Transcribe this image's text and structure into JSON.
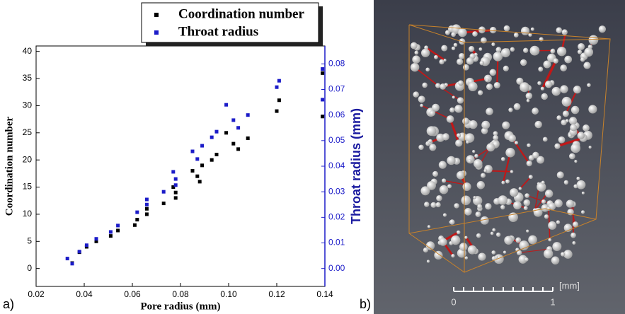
{
  "chart_data": {
    "type": "scatter",
    "xlabel": "Pore radius (mm)",
    "ylabel": "Coordination number",
    "y2label": "Throat radius (mm)",
    "xlim": [
      0.02,
      0.14
    ],
    "xticks": [
      0.02,
      0.04,
      0.06,
      0.08,
      {
        "value": 0.1,
        "label": "0.10"
      },
      0.12,
      0.14
    ],
    "ylim": [
      -3.3,
      41
    ],
    "yticks": [
      0,
      5,
      10,
      15,
      20,
      25,
      30,
      35,
      40
    ],
    "y2lim": [
      -0.007,
      0.087
    ],
    "y2ticks": [
      {
        "value": 0,
        "label": "0.00"
      },
      0.01,
      0.02,
      0.03,
      0.04,
      0.05,
      0.06,
      0.07,
      0.08
    ],
    "legend": "top",
    "series": [
      {
        "name": "Coordination number",
        "color": "#000000",
        "x": [
          0.035,
          0.038,
          0.041,
          0.045,
          0.051,
          0.054,
          0.061,
          0.062,
          0.066,
          0.066,
          0.073,
          0.077,
          0.078,
          0.078,
          0.085,
          0.087,
          0.088,
          0.089,
          0.093,
          0.095,
          0.099,
          0.102,
          0.104,
          0.108,
          0.12,
          0.121,
          0.139,
          0.139
        ],
        "values": [
          1,
          3,
          4,
          5,
          6,
          7,
          8,
          9,
          10,
          11,
          12,
          15,
          14,
          13,
          18,
          17,
          16,
          19,
          20,
          21,
          25,
          23,
          22,
          24,
          29,
          31,
          36,
          28
        ]
      },
      {
        "name": "Throat radius",
        "color": "#1c1cc8",
        "axis": "y2",
        "x": [
          0.033,
          0.035,
          0.038,
          0.041,
          0.045,
          0.051,
          0.054,
          0.062,
          0.066,
          0.066,
          0.073,
          0.077,
          0.078,
          0.078,
          0.085,
          0.087,
          0.089,
          0.093,
          0.095,
          0.099,
          0.102,
          0.104,
          0.108,
          0.12,
          0.121,
          0.139,
          0.139
        ],
        "values": [
          0.0039,
          0.0019,
          0.0066,
          0.0091,
          0.0116,
          0.0143,
          0.0168,
          0.022,
          0.025,
          0.027,
          0.03,
          0.0378,
          0.035,
          0.0326,
          0.0458,
          0.0428,
          0.048,
          0.0513,
          0.0535,
          0.064,
          0.058,
          0.055,
          0.06,
          0.0709,
          0.0734,
          0.078,
          0.066
        ]
      }
    ]
  },
  "panel_labels": [
    "a)",
    "b)"
  ],
  "scale_bar": {
    "unit": "[mm]",
    "ticks": [
      "0",
      "1"
    ]
  }
}
